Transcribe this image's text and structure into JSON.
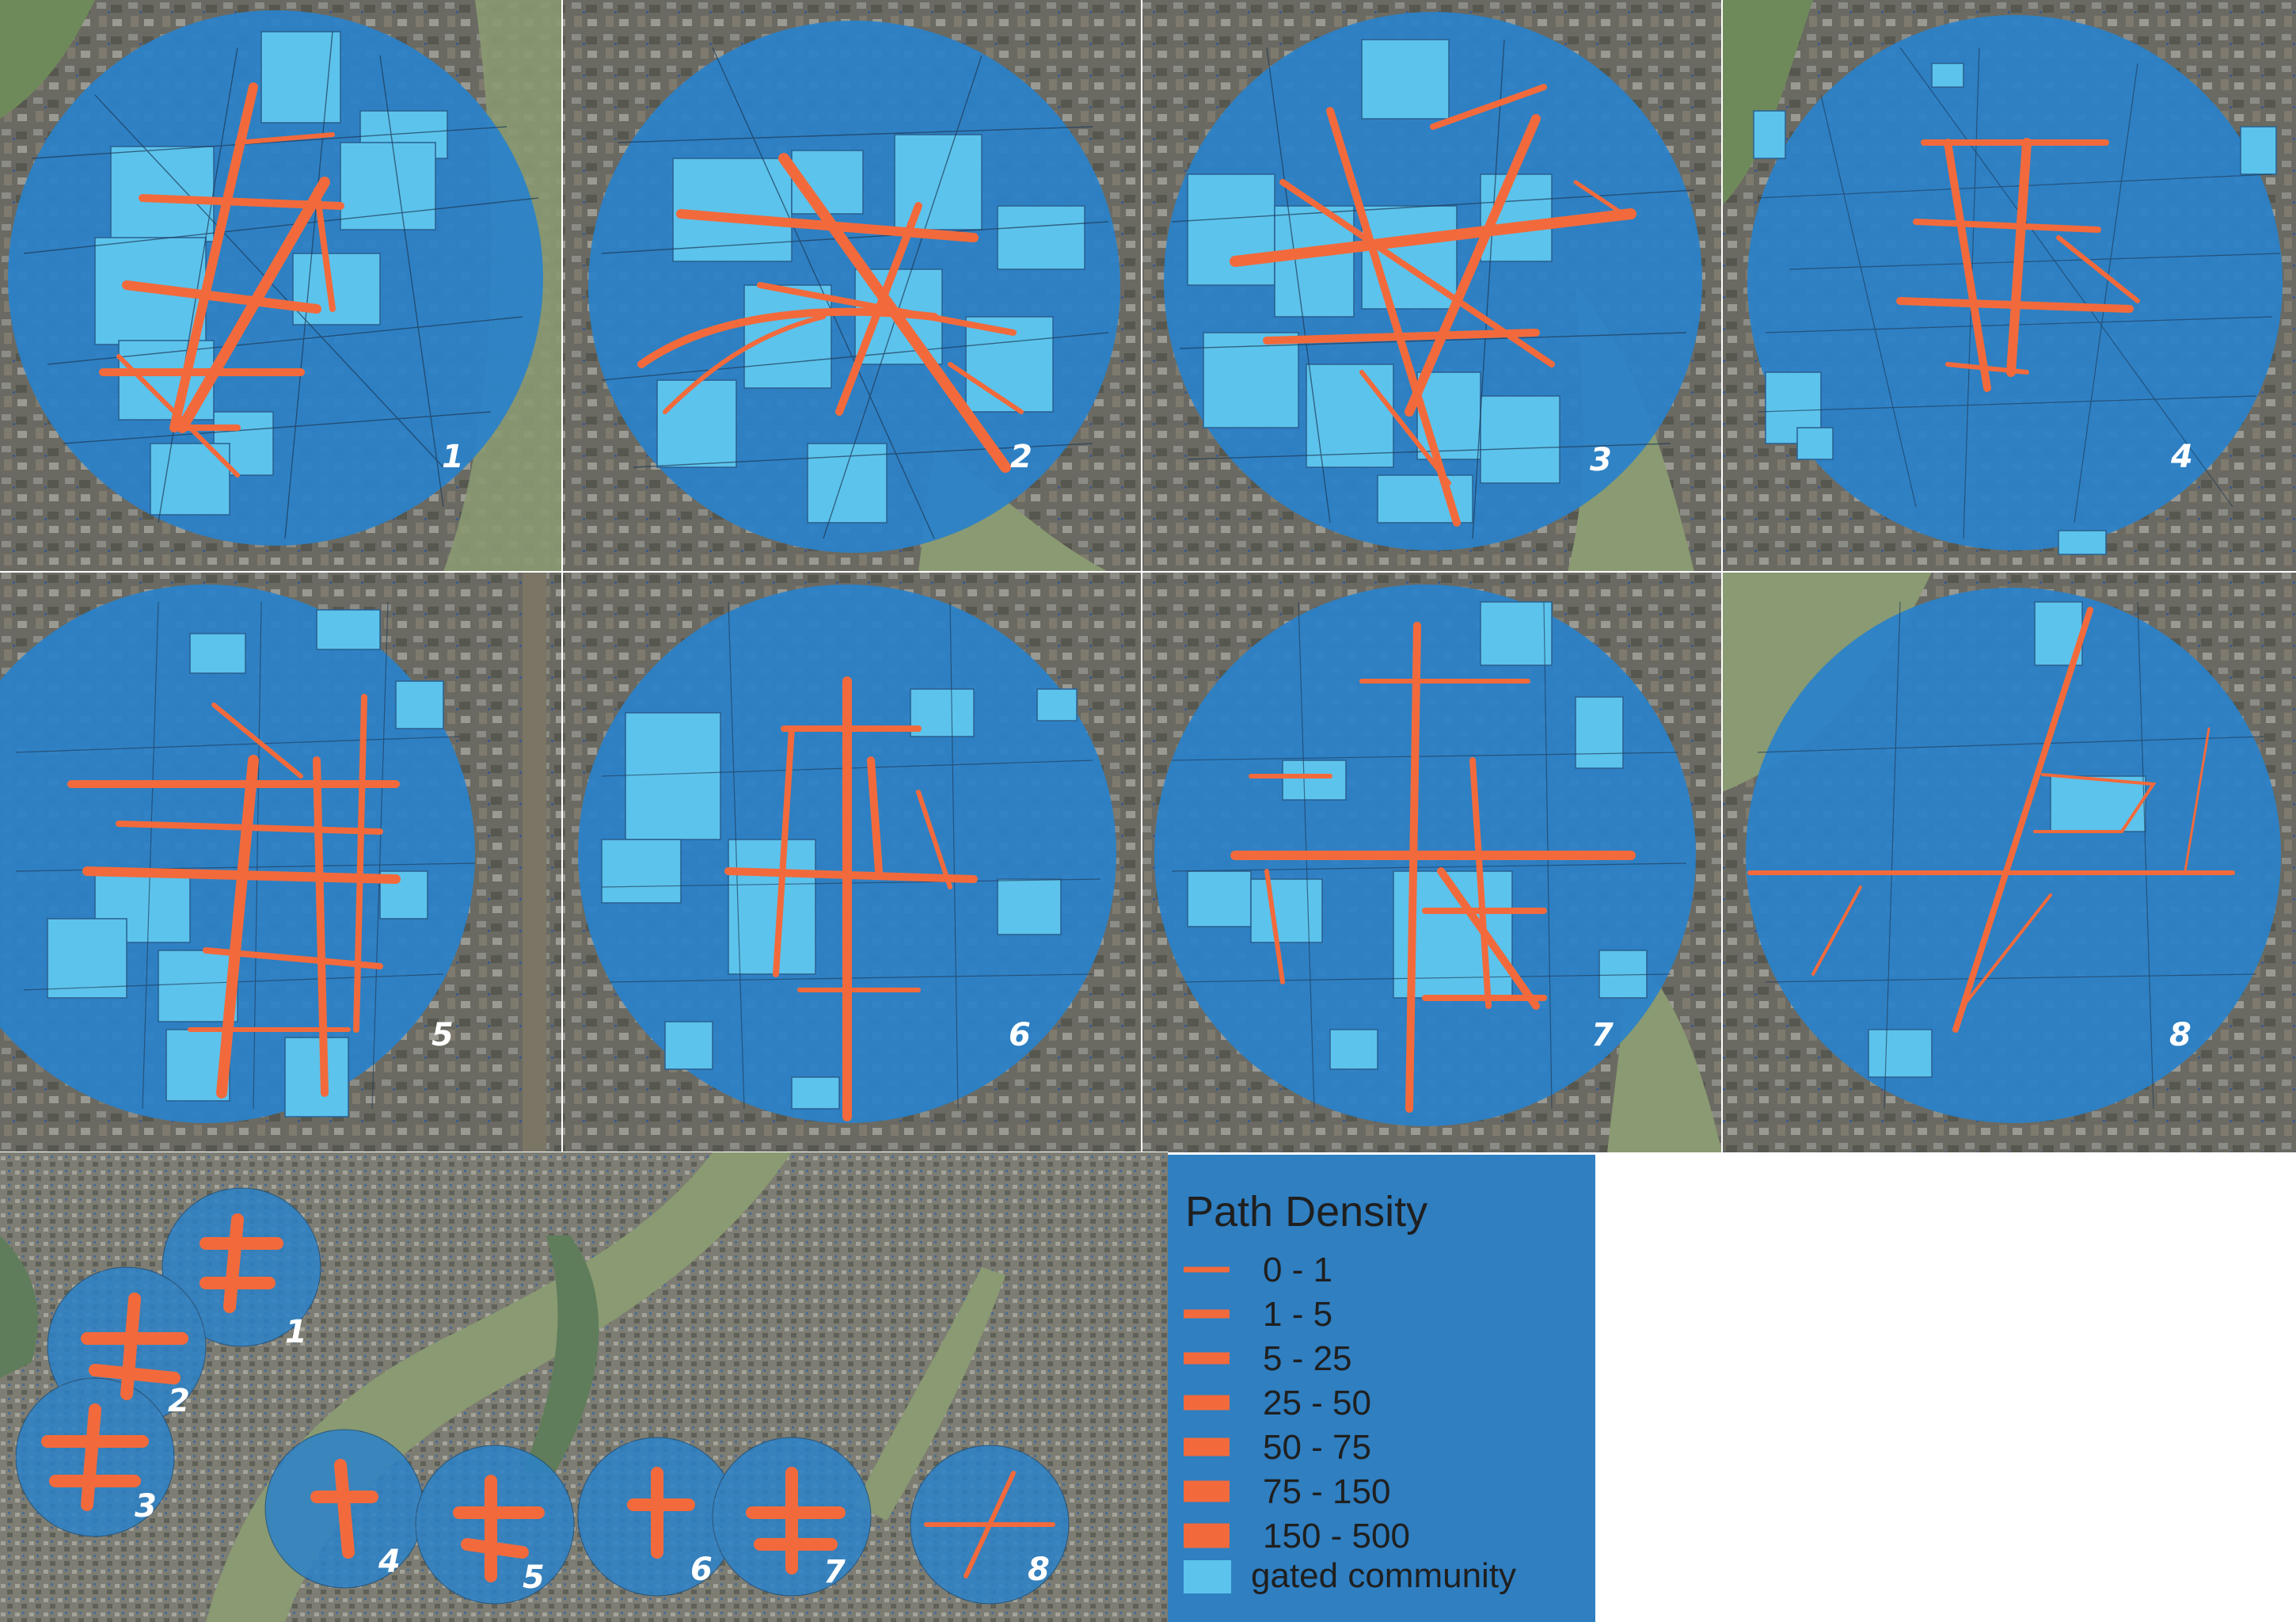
{
  "figure": {
    "panels": [
      {
        "label": "1"
      },
      {
        "label": "2"
      },
      {
        "label": "3"
      },
      {
        "label": "4"
      },
      {
        "label": "5"
      },
      {
        "label": "6"
      },
      {
        "label": "7"
      },
      {
        "label": "8"
      }
    ],
    "overview_labels": [
      "1",
      "2",
      "3",
      "4",
      "5",
      "6",
      "7",
      "8"
    ]
  },
  "legend": {
    "title": "Path Density",
    "items": [
      {
        "label": "0 - 1",
        "width": 1
      },
      {
        "label": "1 - 5",
        "width": 2
      },
      {
        "label": "5 - 25",
        "width": 3
      },
      {
        "label": "25 - 50",
        "width": 4
      },
      {
        "label": "50 - 75",
        "width": 5
      },
      {
        "label": "75 - 150",
        "width": 6
      },
      {
        "label": "150 - 500",
        "width": 7
      }
    ],
    "gated_label": "gated community"
  },
  "colors": {
    "circle_fill": "#2b82c9",
    "gated_fill": "#5cc3ec",
    "path_color": "#f26a3c",
    "legend_bg": "#2f7fc1",
    "satellite_base": "#5a6650",
    "river": "#8a9a72"
  }
}
